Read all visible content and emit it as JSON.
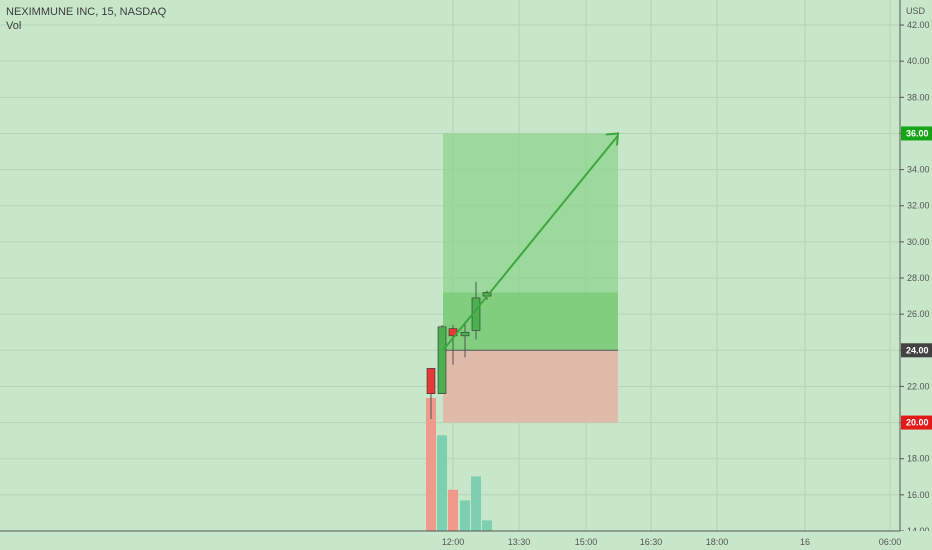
{
  "header": {
    "symbol_line": "NEXIMMUNE INC, 15, NASDAQ",
    "volume_label": "Vol",
    "currency": "USD"
  },
  "colors": {
    "background": "#c8e6c9",
    "grid": "#b5d4b6",
    "up": "#4caf50",
    "down": "#e53935",
    "vol_up": "#7ecfb0",
    "vol_down": "#ef9a8a",
    "profit_zone": "#8ed48c",
    "loss_zone": "#e2b6a5",
    "entry_tag": "#424242",
    "target_tag": "#18a418",
    "stop_tag": "#e21a1a",
    "arrow": "#3ea63e"
  },
  "chart_data": {
    "type": "candlestick",
    "title": "NEXIMMUNE INC, 15, NASDAQ",
    "y_axis_label": "USD",
    "ylim": [
      14,
      42
    ],
    "y_ticks": [
      "14.00",
      "16.00",
      "18.00",
      "20.00",
      "22.00",
      "24.00",
      "26.00",
      "28.00",
      "30.00",
      "32.00",
      "34.00",
      "36.00",
      "38.00",
      "40.00",
      "42.00"
    ],
    "x_ticks": [
      "12:00",
      "13:30",
      "15:00",
      "16:30",
      "18:00",
      "16",
      "06:00"
    ],
    "candles": [
      {
        "time": "11:30",
        "open": 23.0,
        "high": 23.0,
        "low": 20.2,
        "close": 21.6
      },
      {
        "time": "11:45",
        "open": 21.6,
        "high": 25.4,
        "low": 21.6,
        "close": 25.3
      },
      {
        "time": "12:00",
        "open": 25.2,
        "high": 25.4,
        "low": 23.2,
        "close": 24.8
      },
      {
        "time": "12:15",
        "open": 24.8,
        "high": 25.6,
        "low": 23.6,
        "close": 25.0
      },
      {
        "time": "12:30",
        "open": 25.1,
        "high": 27.8,
        "low": 24.6,
        "close": 26.9
      },
      {
        "time": "12:45",
        "open": 27.0,
        "high": 27.3,
        "low": 26.8,
        "close": 27.2
      }
    ],
    "volume": [
      {
        "time": "11:30",
        "direction": "down",
        "relative": 1.0
      },
      {
        "time": "11:45",
        "direction": "up",
        "relative": 0.72
      },
      {
        "time": "12:00",
        "direction": "down",
        "relative": 0.31
      },
      {
        "time": "12:15",
        "direction": "up",
        "relative": 0.23
      },
      {
        "time": "12:30",
        "direction": "up",
        "relative": 0.41
      },
      {
        "time": "12:45",
        "direction": "up",
        "relative": 0.08
      }
    ],
    "long_position": {
      "entry": "24.00",
      "target": "36.00",
      "stop": "20.00",
      "current_price": 27.2
    }
  }
}
